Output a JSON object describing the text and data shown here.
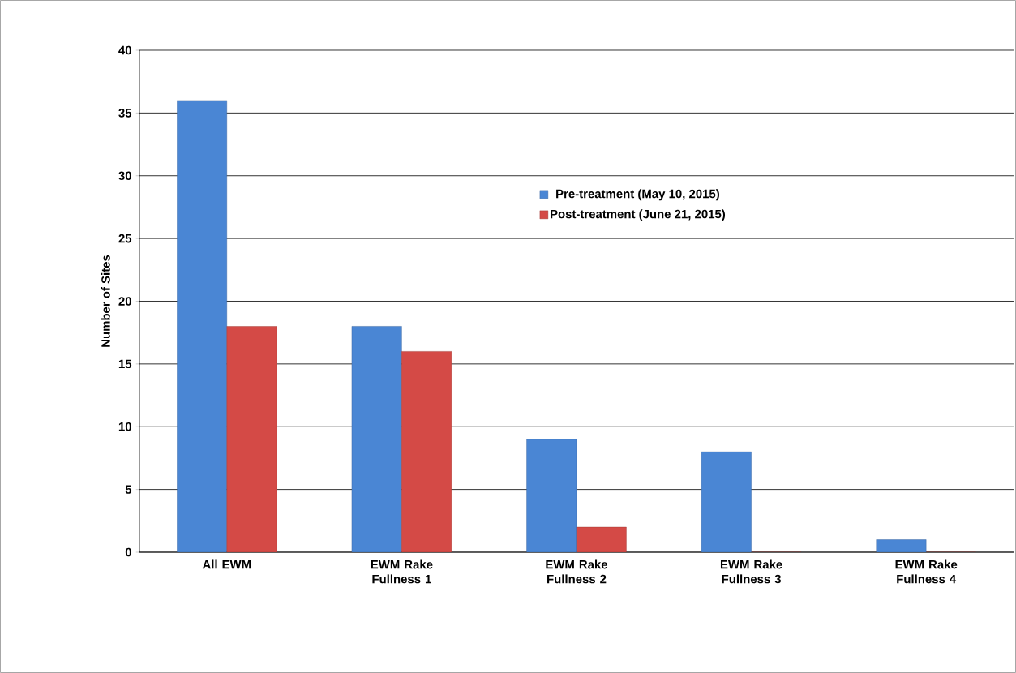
{
  "chart_data": {
    "type": "bar",
    "ylabel": "Number of Sites",
    "categories": [
      "All EWM",
      "EWM Rake Fullness 1",
      "EWM Rake Fullness 2",
      "EWM Rake Fullness 3",
      "EWM Rake Fullness 4"
    ],
    "series": [
      {
        "name": "Pre-treatment (May 10, 2015)",
        "color": "#4a86d4",
        "values": [
          36,
          18,
          9,
          8,
          1
        ]
      },
      {
        "name": "Post-treatment (June 21, 2015)",
        "color": "#d44a46",
        "values": [
          18,
          16,
          2,
          0,
          0
        ]
      }
    ],
    "ylim": [
      0,
      40
    ],
    "yticks": [
      0,
      5,
      10,
      15,
      20,
      25,
      30,
      35,
      40
    ],
    "grid": "y",
    "legend": "top"
  }
}
